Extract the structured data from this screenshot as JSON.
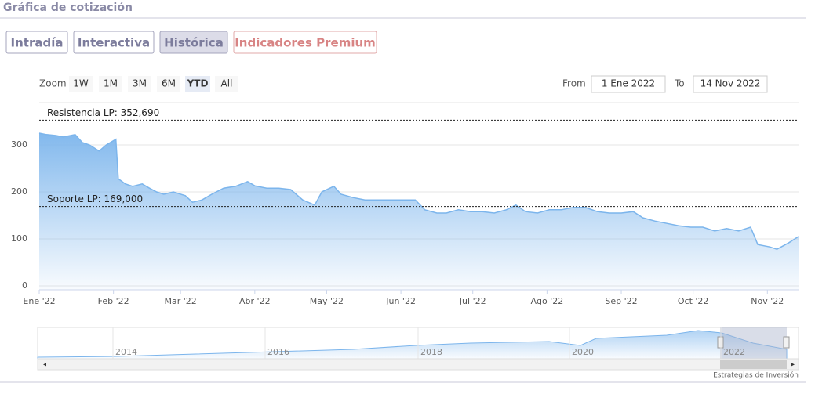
{
  "header": {
    "title": "Gráfica de cotización"
  },
  "tabs": [
    "Intradía",
    "Interactiva",
    "Histórica",
    "Indicadores Premium"
  ],
  "active_tab": 2,
  "range_selector": {
    "label": "Zoom",
    "buttons": [
      "1W",
      "1M",
      "3M",
      "6M",
      "YTD",
      "All"
    ],
    "active_button": 4,
    "from_label": "From",
    "from": "1 Ene 2022",
    "to_label": "To",
    "to": "14 Nov 2022"
  },
  "chart_data": {
    "type": "area",
    "color": "#7cb5ec",
    "x": [
      0,
      3,
      7,
      10,
      15,
      18,
      21,
      25,
      28,
      32,
      33,
      36,
      39,
      43,
      46,
      49,
      52,
      56,
      61,
      64,
      68,
      72,
      77,
      82,
      87,
      90,
      95,
      100,
      105,
      110,
      115,
      118,
      123,
      126,
      131,
      136,
      141,
      146,
      151,
      157,
      161,
      166,
      170,
      175,
      180,
      185,
      190,
      195,
      199,
      203,
      208,
      213,
      218,
      223,
      228,
      233,
      238,
      243,
      248,
      252,
      257,
      262,
      267,
      272,
      277,
      282,
      287,
      292,
      297,
      300,
      305,
      308,
      313,
      317
    ],
    "values": [
      325,
      322,
      320,
      317,
      322,
      305,
      300,
      287,
      300,
      312,
      228,
      217,
      212,
      217,
      208,
      200,
      195,
      200,
      192,
      178,
      183,
      195,
      208,
      212,
      222,
      213,
      208,
      208,
      205,
      183,
      172,
      200,
      212,
      195,
      188,
      183,
      183,
      183,
      183,
      183,
      162,
      155,
      155,
      162,
      158,
      158,
      155,
      162,
      172,
      158,
      155,
      162,
      162,
      167,
      167,
      158,
      155,
      155,
      158,
      145,
      138,
      133,
      128,
      125,
      125,
      117,
      122,
      117,
      125,
      88,
      83,
      78,
      92,
      105
    ],
    "xlim": [
      0,
      317
    ],
    "xticks": [
      {
        "value": 0,
        "label": "Ene '22"
      },
      {
        "value": 31,
        "label": "Feb '22"
      },
      {
        "value": 59,
        "label": "Mar '22"
      },
      {
        "value": 90,
        "label": "Abr '22"
      },
      {
        "value": 120,
        "label": "May '22"
      },
      {
        "value": 151,
        "label": "Jun '22"
      },
      {
        "value": 181,
        "label": "Jul '22"
      },
      {
        "value": 212,
        "label": "Ago '22"
      },
      {
        "value": 243,
        "label": "Sep '22"
      },
      {
        "value": 273,
        "label": "Oct '22"
      },
      {
        "value": 304,
        "label": "Nov '22"
      }
    ],
    "ylim": [
      0,
      390
    ],
    "yticks": [
      0,
      100,
      200,
      300
    ],
    "grid": true,
    "annotations": [
      {
        "label": "Resistencia LP: 352,690",
        "value": 352.69
      },
      {
        "label": "Soporte LP: 169,000",
        "value": 169
      }
    ]
  },
  "navigator": {
    "labels": [
      "2014",
      "2016",
      "2018",
      "2020",
      "2022"
    ]
  },
  "credits": "Estrategias de Inversión"
}
